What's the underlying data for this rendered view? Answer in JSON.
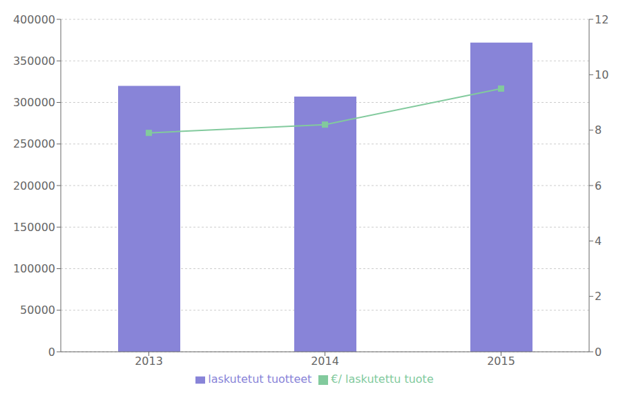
{
  "chart_data": {
    "type": "bar",
    "categories": [
      "2013",
      "2014",
      "2015"
    ],
    "series": [
      {
        "name": "laskutetut tuotteet",
        "type": "bar",
        "color": "#8884d8",
        "values": [
          320000,
          307000,
          372000
        ]
      },
      {
        "name": "€/ laskutettu tuote",
        "type": "line",
        "axis": "y2",
        "color": "#82ca9d",
        "marker": "square",
        "values": [
          7.9,
          8.2,
          9.5
        ]
      }
    ],
    "ylim": [
      0,
      400000
    ],
    "yticks": [
      0,
      50000,
      100000,
      150000,
      200000,
      250000,
      300000,
      350000,
      400000
    ],
    "y2lim": [
      0,
      12
    ],
    "y2ticks": [
      0,
      2,
      4,
      6,
      8,
      10,
      12
    ],
    "grid": true,
    "legend": "bottom"
  }
}
